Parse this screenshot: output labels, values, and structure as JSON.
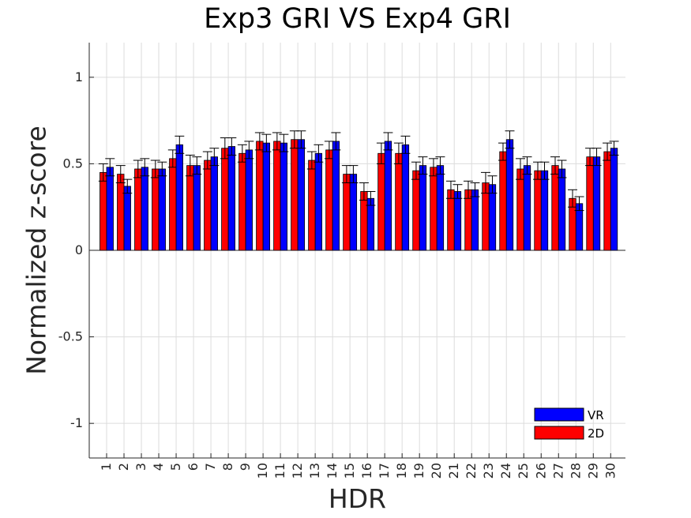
{
  "chart_data": {
    "type": "bar",
    "title": "Exp3 GRI VS Exp4 GRI",
    "xlabel": "HDR",
    "ylabel": "Normalized z-score",
    "ylim": [
      -1.2,
      1.2
    ],
    "yticks": [
      -1,
      -0.5,
      0,
      0.5,
      1
    ],
    "ytick_labels": [
      "-1",
      "-0.5",
      "0",
      "0.5",
      "1"
    ],
    "grid": true,
    "legend_position": "bottom-right",
    "categories": [
      "1",
      "2",
      "3",
      "4",
      "5",
      "6",
      "7",
      "8",
      "9",
      "10",
      "11",
      "12",
      "13",
      "14",
      "15",
      "16",
      "17",
      "18",
      "19",
      "20",
      "21",
      "22",
      "23",
      "24",
      "25",
      "26",
      "27",
      "28",
      "29",
      "30"
    ],
    "series": [
      {
        "name": "2D",
        "color": "#ff0000",
        "values": [
          0.45,
          0.44,
          0.47,
          0.47,
          0.53,
          0.49,
          0.52,
          0.59,
          0.56,
          0.63,
          0.63,
          0.64,
          0.52,
          0.58,
          0.44,
          0.34,
          0.56,
          0.56,
          0.46,
          0.48,
          0.35,
          0.35,
          0.39,
          0.57,
          0.47,
          0.46,
          0.49,
          0.3,
          0.54,
          0.57
        ],
        "errors": [
          0.05,
          0.05,
          0.05,
          0.05,
          0.05,
          0.06,
          0.05,
          0.06,
          0.05,
          0.05,
          0.05,
          0.05,
          0.05,
          0.05,
          0.05,
          0.05,
          0.06,
          0.06,
          0.05,
          0.05,
          0.05,
          0.05,
          0.06,
          0.05,
          0.06,
          0.05,
          0.05,
          0.05,
          0.05,
          0.05
        ]
      },
      {
        "name": "VR",
        "color": "#0000ff",
        "values": [
          0.48,
          0.37,
          0.48,
          0.47,
          0.61,
          0.49,
          0.54,
          0.6,
          0.58,
          0.62,
          0.62,
          0.64,
          0.56,
          0.63,
          0.44,
          0.3,
          0.63,
          0.61,
          0.49,
          0.49,
          0.34,
          0.35,
          0.38,
          0.64,
          0.49,
          0.46,
          0.47,
          0.27,
          0.54,
          0.59
        ],
        "errors": [
          0.05,
          0.04,
          0.05,
          0.04,
          0.05,
          0.05,
          0.05,
          0.05,
          0.05,
          0.05,
          0.05,
          0.05,
          0.05,
          0.05,
          0.05,
          0.04,
          0.05,
          0.05,
          0.05,
          0.05,
          0.04,
          0.04,
          0.05,
          0.05,
          0.05,
          0.05,
          0.05,
          0.04,
          0.05,
          0.04
        ]
      }
    ],
    "legend": [
      "VR",
      "2D"
    ]
  }
}
